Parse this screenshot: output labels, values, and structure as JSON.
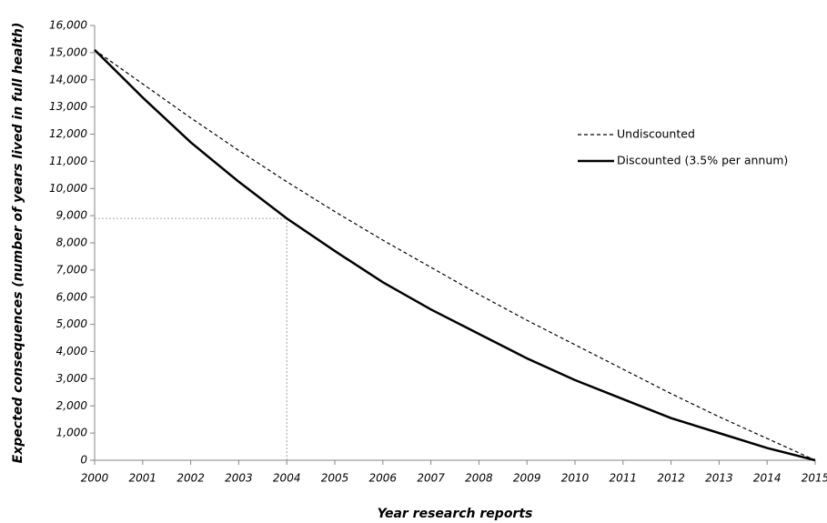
{
  "chart_data": {
    "type": "line",
    "x_label": "Year research reports",
    "y_label": "Expected consequences  (number of years lived in full health)",
    "x": [
      2000,
      2001,
      2002,
      2003,
      2004,
      2005,
      2006,
      2007,
      2008,
      2009,
      2010,
      2011,
      2012,
      2013,
      2014,
      2015
    ],
    "series": [
      {
        "name": "Undiscounted",
        "color": "#000000",
        "dash": true,
        "values": [
          15100,
          13850,
          12600,
          11400,
          10250,
          9150,
          8100,
          7100,
          6100,
          5150,
          4250,
          3350,
          2450,
          1600,
          800,
          0
        ]
      },
      {
        "name": "Discounted (3.5% per annum)",
        "color": "#000000",
        "dash": false,
        "values": [
          15100,
          13350,
          11700,
          10250,
          8900,
          7700,
          6550,
          5550,
          4650,
          3750,
          2950,
          2250,
          1550,
          1000,
          450,
          0
        ]
      }
    ],
    "guide": {
      "x": 2004,
      "y": 8900
    },
    "xlim": [
      2000,
      2015
    ],
    "xticks": [
      2000,
      2001,
      2002,
      2003,
      2004,
      2005,
      2006,
      2007,
      2008,
      2009,
      2010,
      2011,
      2012,
      2013,
      2014,
      2015
    ],
    "ylim": [
      0,
      16000
    ],
    "yticks": [
      0,
      {
        "value": 1000,
        "label": "1,000"
      },
      {
        "value": 2000,
        "label": "2,000"
      },
      {
        "value": 3000,
        "label": "3,000"
      },
      {
        "value": 4000,
        "label": "4,000"
      },
      {
        "value": 5000,
        "label": "5,000"
      },
      {
        "value": 6000,
        "label": "6,000"
      },
      {
        "value": 7000,
        "label": "7,000"
      },
      {
        "value": 8000,
        "label": "8,000"
      },
      {
        "value": 9000,
        "label": "9,000"
      },
      {
        "value": 10000,
        "label": "10,000"
      },
      {
        "value": 11000,
        "label": "11,000"
      },
      {
        "value": 12000,
        "label": "12,000"
      },
      {
        "value": 13000,
        "label": "13,000"
      },
      {
        "value": 14000,
        "label": "14,000"
      },
      {
        "value": 15000,
        "label": "15,000"
      },
      {
        "value": 16000,
        "label": "16,000"
      }
    ],
    "grid": false,
    "legend": "right"
  }
}
